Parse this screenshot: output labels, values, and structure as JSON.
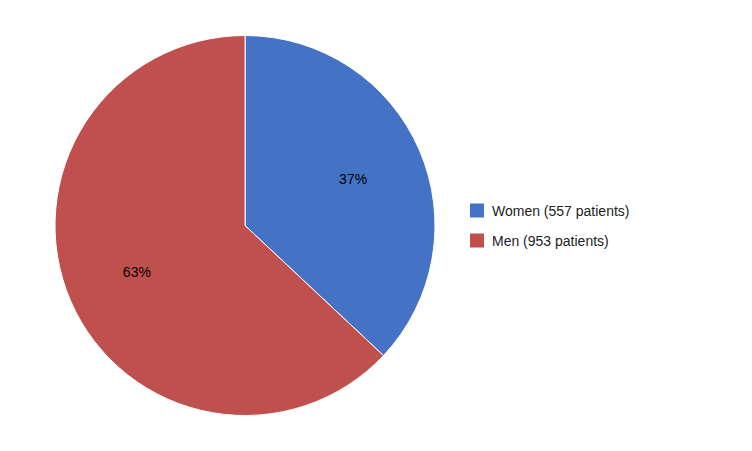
{
  "chart_data": {
    "type": "pie",
    "categories": [
      "Women (557 patients)",
      "Men (953 patients)"
    ],
    "values": [
      37,
      63
    ],
    "value_labels": [
      "37%",
      "63%"
    ],
    "colors": [
      "#4472C4",
      "#C0504D"
    ],
    "data_labels": true,
    "legend": "right"
  }
}
